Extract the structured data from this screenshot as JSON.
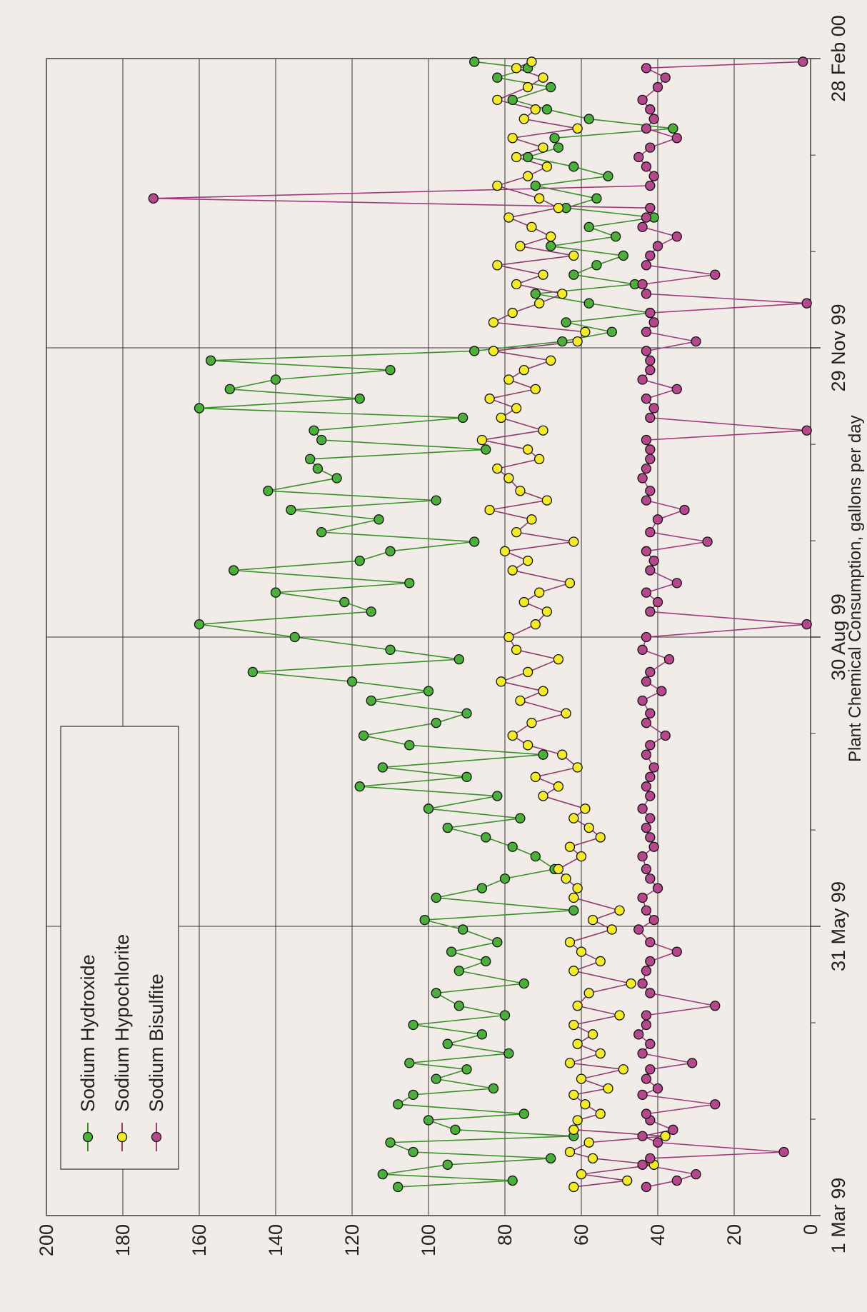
{
  "chart_data": {
    "type": "line",
    "title": "",
    "xlabel": "",
    "ylabel": "Plant Chemical Consumption, gallons per day",
    "ylim": [
      0,
      200
    ],
    "yticks": [
      "0",
      "20",
      "40",
      "60",
      "80",
      "100",
      "120",
      "140",
      "160",
      "180",
      "200"
    ],
    "xticks": [
      {
        "day": 0,
        "label": "1 Mar 99"
      },
      {
        "day": 91,
        "label": "31 May 99"
      },
      {
        "day": 182,
        "label": "30 Aug 99"
      },
      {
        "day": 273,
        "label": "29 Nov 99"
      },
      {
        "day": 364,
        "label": "28 Feb 00"
      }
    ],
    "xlim_days": [
      0,
      364
    ],
    "grid": "horizontal lines every 20; vertical lines at quarter ticks",
    "legend": {
      "placement": "top-left"
    },
    "series": [
      {
        "name": "Sodium Hydroxide",
        "color": "#4caf3c",
        "line": "#3b8f2a",
        "x": [
          9,
          11,
          13,
          16,
          18,
          20,
          23,
          25,
          27,
          30,
          32,
          35,
          38,
          40,
          43,
          46,
          48,
          51,
          54,
          57,
          60,
          63,
          66,
          70,
          73,
          77,
          80,
          83,
          86,
          90,
          93,
          96,
          100,
          103,
          106,
          109,
          113,
          116,
          119,
          122,
          125,
          128,
          132,
          135,
          138,
          141,
          145,
          148,
          151,
          155,
          158,
          162,
          165,
          168,
          171,
          175,
          178,
          182,
          186,
          190,
          193,
          196,
          199,
          203,
          206,
          209,
          212,
          215,
          219,
          222,
          225,
          228,
          232,
          235,
          238,
          241,
          244,
          247,
          251,
          254,
          257,
          260,
          263,
          266,
          269,
          272,
          275,
          278,
          281,
          284,
          287,
          290,
          293,
          296,
          299,
          302,
          305,
          308,
          311,
          314,
          317,
          320,
          324,
          327,
          330,
          333,
          336,
          339,
          342,
          345,
          348,
          351,
          355,
          358,
          361,
          363
        ],
        "y": [
          108,
          78,
          112,
          95,
          68,
          104,
          110,
          62,
          93,
          100,
          75,
          108,
          104,
          83,
          98,
          90,
          105,
          79,
          95,
          86,
          104,
          80,
          92,
          98,
          75,
          92,
          85,
          94,
          82,
          91,
          101,
          62,
          98,
          86,
          80,
          67,
          72,
          78,
          85,
          95,
          76,
          100,
          82,
          118,
          90,
          112,
          70,
          105,
          117,
          98,
          90,
          115,
          100,
          120,
          146,
          92,
          110,
          135,
          160,
          115,
          122,
          140,
          105,
          151,
          118,
          110,
          88,
          128,
          113,
          136,
          98,
          142,
          124,
          129,
          131,
          85,
          128,
          130,
          91,
          160,
          118,
          152,
          140,
          110,
          157,
          88,
          65,
          52,
          64,
          42,
          58,
          72,
          46,
          62,
          56,
          49,
          68,
          51,
          58,
          41,
          64,
          56,
          72,
          53,
          62,
          74,
          66,
          67,
          36,
          58,
          69,
          78,
          68,
          82,
          74,
          88
        ]
      },
      {
        "name": "Sodium Hypochlorite",
        "color": "#f4ea2c",
        "line": "#8e3a6e",
        "x": [
          9,
          11,
          13,
          16,
          18,
          20,
          23,
          25,
          27,
          30,
          32,
          35,
          38,
          40,
          43,
          46,
          48,
          51,
          54,
          57,
          60,
          63,
          66,
          70,
          73,
          77,
          80,
          83,
          86,
          90,
          93,
          96,
          100,
          103,
          106,
          109,
          113,
          116,
          119,
          122,
          125,
          128,
          132,
          135,
          138,
          141,
          145,
          148,
          151,
          155,
          158,
          162,
          165,
          168,
          171,
          175,
          178,
          182,
          186,
          190,
          193,
          196,
          199,
          203,
          206,
          209,
          212,
          215,
          219,
          222,
          225,
          228,
          232,
          235,
          238,
          241,
          244,
          247,
          251,
          254,
          257,
          260,
          263,
          266,
          269,
          272,
          275,
          278,
          281,
          284,
          287,
          290,
          293,
          296,
          299,
          302,
          305,
          308,
          311,
          314,
          317,
          320,
          324,
          327,
          330,
          333,
          336,
          339,
          342,
          345,
          348,
          351,
          355,
          358,
          361,
          363
        ],
        "y": [
          62,
          48,
          60,
          41,
          57,
          63,
          58,
          38,
          62,
          61,
          55,
          59,
          62,
          53,
          60,
          49,
          63,
          55,
          61,
          57,
          62,
          50,
          61,
          58,
          47,
          62,
          55,
          60,
          63,
          52,
          57,
          50,
          62,
          61,
          64,
          66,
          60,
          63,
          55,
          58,
          62,
          59,
          70,
          66,
          72,
          61,
          65,
          74,
          78,
          73,
          64,
          76,
          70,
          81,
          74,
          66,
          77,
          79,
          72,
          69,
          75,
          71,
          63,
          78,
          74,
          80,
          62,
          77,
          73,
          84,
          69,
          76,
          79,
          82,
          71,
          74,
          86,
          70,
          81,
          77,
          84,
          72,
          79,
          75,
          68,
          83,
          61,
          59,
          83,
          78,
          71,
          65,
          77,
          70,
          82,
          62,
          76,
          68,
          73,
          79,
          66,
          71,
          82,
          74,
          69,
          77,
          70,
          78,
          61,
          75,
          72,
          82,
          74,
          70,
          77,
          73
        ]
      },
      {
        "name": "Sodium Bisulfite",
        "color": "#b5488d",
        "line": "#a13a7d",
        "x": [
          9,
          11,
          13,
          16,
          18,
          20,
          23,
          25,
          27,
          30,
          32,
          35,
          38,
          40,
          43,
          46,
          48,
          51,
          54,
          57,
          60,
          63,
          66,
          70,
          73,
          77,
          80,
          83,
          86,
          90,
          93,
          96,
          100,
          103,
          106,
          109,
          113,
          116,
          119,
          122,
          125,
          128,
          132,
          135,
          138,
          141,
          145,
          148,
          151,
          155,
          158,
          162,
          165,
          168,
          171,
          175,
          178,
          182,
          186,
          190,
          193,
          196,
          199,
          203,
          206,
          209,
          212,
          215,
          219,
          222,
          225,
          228,
          232,
          235,
          238,
          241,
          244,
          247,
          251,
          254,
          257,
          260,
          263,
          266,
          269,
          272,
          275,
          278,
          281,
          284,
          287,
          290,
          293,
          296,
          299,
          302,
          305,
          308,
          311,
          314,
          317,
          320,
          324,
          327,
          330,
          333,
          336,
          339,
          342,
          345,
          348,
          351,
          355,
          358,
          361,
          363
        ],
        "y": [
          43,
          35,
          30,
          44,
          42,
          7,
          40,
          44,
          36,
          42,
          43,
          25,
          44,
          40,
          43,
          42,
          31,
          44,
          42,
          45,
          43,
          43,
          25,
          42,
          44,
          43,
          42,
          35,
          42,
          45,
          41,
          43,
          44,
          40,
          42,
          43,
          44,
          41,
          42,
          43,
          42,
          44,
          42,
          43,
          42,
          41,
          43,
          42,
          38,
          43,
          42,
          44,
          39,
          43,
          42,
          37,
          44,
          43,
          1,
          42,
          40,
          43,
          35,
          42,
          41,
          43,
          27,
          42,
          40,
          33,
          43,
          42,
          44,
          43,
          42,
          42,
          43,
          1,
          42,
          41,
          43,
          35,
          44,
          42,
          42,
          43,
          30,
          43,
          41,
          42,
          1,
          43,
          44,
          25,
          43,
          42,
          40,
          35,
          44,
          43,
          42,
          172,
          42,
          41,
          43,
          45,
          42,
          35,
          43,
          41,
          42,
          44,
          40,
          38,
          43,
          2
        ]
      }
    ]
  }
}
